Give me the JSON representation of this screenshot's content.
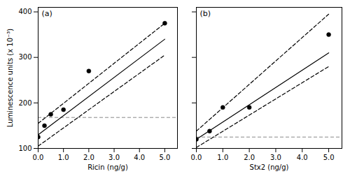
{
  "chart_data": [
    {
      "type": "scatter",
      "title": "(a)",
      "xlabel": "Ricin (ng/g)",
      "ylabel": "Luminescence units (x 10⁻³)",
      "xlim": [
        0,
        5.5
      ],
      "ylim": [
        100,
        410
      ],
      "xticks": [
        0,
        1,
        2,
        3,
        4,
        5
      ],
      "yticks": [
        100,
        200,
        300,
        400
      ],
      "grid": false,
      "tick_labels": true,
      "series": [
        {
          "type": "hline",
          "values": [
            168
          ],
          "color": "#888888",
          "line_style": "dashed"
        },
        {
          "type": "line",
          "x": [
            0,
            5
          ],
          "values": [
            155,
            375
          ],
          "color": "#000000",
          "line_style": "dashed"
        },
        {
          "type": "line",
          "x": [
            0,
            5
          ],
          "values": [
            105,
            305
          ],
          "color": "#000000",
          "line_style": "dashed"
        },
        {
          "type": "line",
          "x": [
            0,
            5
          ],
          "values": [
            130,
            340
          ],
          "color": "#000000",
          "line_style": "solid"
        },
        {
          "type": "scatter",
          "x": [
            0.0,
            0.25,
            0.5,
            1.0,
            2.0,
            5.0
          ],
          "values": [
            125,
            150,
            175,
            185,
            270,
            375
          ],
          "color": "#000000",
          "marker": "circle"
        }
      ]
    },
    {
      "type": "scatter",
      "title": "(b)",
      "xlabel": "Stx2 (ng/g)",
      "xlim": [
        0,
        5.5
      ],
      "ylim": [
        100,
        410
      ],
      "xticks": [
        0,
        1,
        2,
        3,
        4,
        5
      ],
      "yticks": [
        100,
        200,
        300,
        400
      ],
      "grid": false,
      "tick_labels": "x",
      "series": [
        {
          "type": "hline",
          "values": [
            125
          ],
          "color": "#888888",
          "line_style": "dashed"
        },
        {
          "type": "line",
          "x": [
            0,
            5
          ],
          "values": [
            138,
            395
          ],
          "color": "#000000",
          "line_style": "dashed"
        },
        {
          "type": "line",
          "x": [
            0,
            5
          ],
          "values": [
            102,
            280
          ],
          "color": "#000000",
          "line_style": "dashed"
        },
        {
          "type": "line",
          "x": [
            0,
            5
          ],
          "values": [
            120,
            310
          ],
          "color": "#000000",
          "line_style": "solid"
        },
        {
          "type": "scatter",
          "x": [
            0.0,
            0.5,
            1.0,
            2.0,
            5.0
          ],
          "values": [
            120,
            138,
            190,
            190,
            350
          ],
          "color": "#000000",
          "marker": "circle"
        }
      ]
    }
  ]
}
